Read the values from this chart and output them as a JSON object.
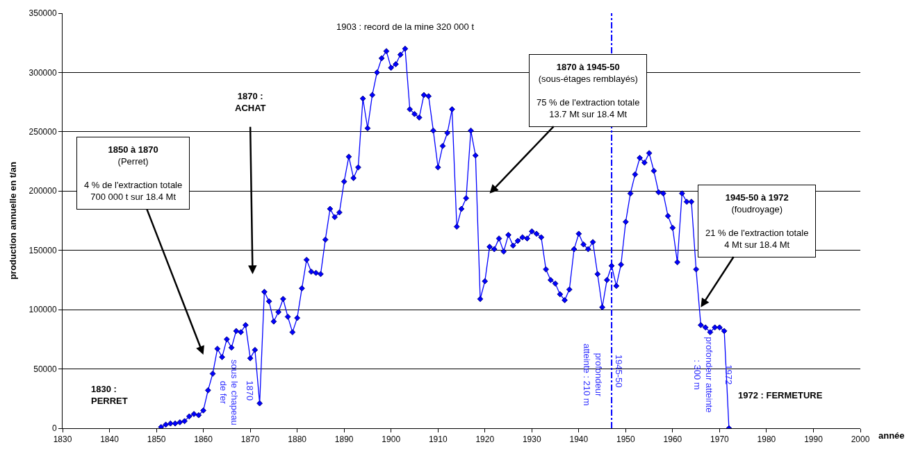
{
  "chart_data": {
    "type": "line",
    "xlabel": "année",
    "ylabel": "production annuelle en t/an",
    "x": [
      1851,
      1852,
      1853,
      1854,
      1855,
      1856,
      1857,
      1858,
      1859,
      1860,
      1861,
      1862,
      1863,
      1864,
      1865,
      1866,
      1867,
      1868,
      1869,
      1870,
      1871,
      1872,
      1873,
      1874,
      1875,
      1876,
      1877,
      1878,
      1879,
      1880,
      1881,
      1882,
      1883,
      1884,
      1885,
      1886,
      1887,
      1888,
      1889,
      1890,
      1891,
      1892,
      1893,
      1894,
      1895,
      1896,
      1897,
      1898,
      1899,
      1900,
      1901,
      1902,
      1903,
      1904,
      1905,
      1906,
      1907,
      1908,
      1909,
      1910,
      1911,
      1912,
      1913,
      1914,
      1915,
      1916,
      1917,
      1918,
      1919,
      1920,
      1921,
      1922,
      1923,
      1924,
      1925,
      1926,
      1927,
      1928,
      1929,
      1930,
      1931,
      1932,
      1933,
      1934,
      1935,
      1936,
      1937,
      1938,
      1939,
      1940,
      1941,
      1942,
      1943,
      1944,
      1945,
      1946,
      1947,
      1948,
      1949,
      1950,
      1951,
      1952,
      1953,
      1954,
      1955,
      1956,
      1957,
      1958,
      1959,
      1960,
      1961,
      1962,
      1963,
      1964,
      1965,
      1966,
      1967,
      1968,
      1969,
      1970,
      1971,
      1972
    ],
    "series": [
      {
        "color": "#0000ff",
        "values": [
          1000,
          3000,
          4000,
          4000,
          5000,
          6000,
          10000,
          12000,
          11000,
          15000,
          32000,
          46000,
          67000,
          60000,
          75000,
          68000,
          82000,
          81000,
          87000,
          59000,
          66000,
          21000,
          115000,
          107000,
          90000,
          98000,
          109000,
          94000,
          81000,
          93000,
          118000,
          142000,
          132000,
          131000,
          130000,
          159000,
          185000,
          178000,
          182000,
          208000,
          229000,
          211000,
          220000,
          278000,
          253000,
          281000,
          300000,
          312000,
          318000,
          304000,
          307000,
          315000,
          320000,
          269000,
          265000,
          262000,
          281000,
          280000,
          251000,
          220000,
          238000,
          249000,
          269000,
          170000,
          185000,
          194000,
          251000,
          230000,
          109000,
          124000,
          153000,
          151000,
          160000,
          149000,
          163000,
          154000,
          158000,
          161000,
          160000,
          166000,
          164000,
          161000,
          134000,
          125000,
          122000,
          113000,
          108000,
          117000,
          151000,
          164000,
          155000,
          151000,
          157000,
          130000,
          102000,
          125000,
          137000,
          120000,
          138000,
          174000,
          198000,
          214000,
          228000,
          224000,
          232000,
          217000,
          199000,
          198000,
          179000,
          169000,
          140000,
          198000,
          191000,
          191000,
          134000,
          87000,
          85000,
          81000,
          85000,
          85000,
          82000,
          0
        ]
      }
    ],
    "xlim": [
      1830,
      2000
    ],
    "xticks": [
      1830,
      1840,
      1850,
      1860,
      1870,
      1880,
      1890,
      1900,
      1910,
      1920,
      1930,
      1940,
      1950,
      1960,
      1970,
      1980,
      1990,
      2000
    ],
    "ylim": [
      0,
      350000
    ],
    "yticks": [
      0,
      50000,
      100000,
      150000,
      200000,
      250000,
      300000,
      350000
    ],
    "grid": "y",
    "marker": "diamond",
    "line_style": "solid",
    "ref_lines": [
      {
        "axis": "x",
        "value": 1947,
        "color": "#0000ff",
        "line_style": "dashdot"
      }
    ],
    "annotations": [
      {
        "text": "1903 : record de la mine 320 000 t",
        "x": 1903,
        "y": 320000
      },
      "1870 :\nACHAT",
      "1850 à 1870\n(Perret)\n\n4 % de l'extraction totale\n700 000 t sur 18.4 Mt",
      "1870 à 1945-50\n(sous-étages remblayés)\n\n75 % de l'extraction totale\n13.7 Mt sur 18.4 Mt",
      "1945-50 à 1972\n(foudroyage)\n\n21 % de l'extraction totale\n4 Mt sur 18.4 Mt",
      "1830 :\nPERRET",
      "1972 : FERMETURE",
      "sous le chapeau\nde fer",
      "1870",
      "profondeur\natteinte : 210 m",
      "profondeur atteinte\n: 300 m",
      "1972",
      "1945-50"
    ]
  }
}
